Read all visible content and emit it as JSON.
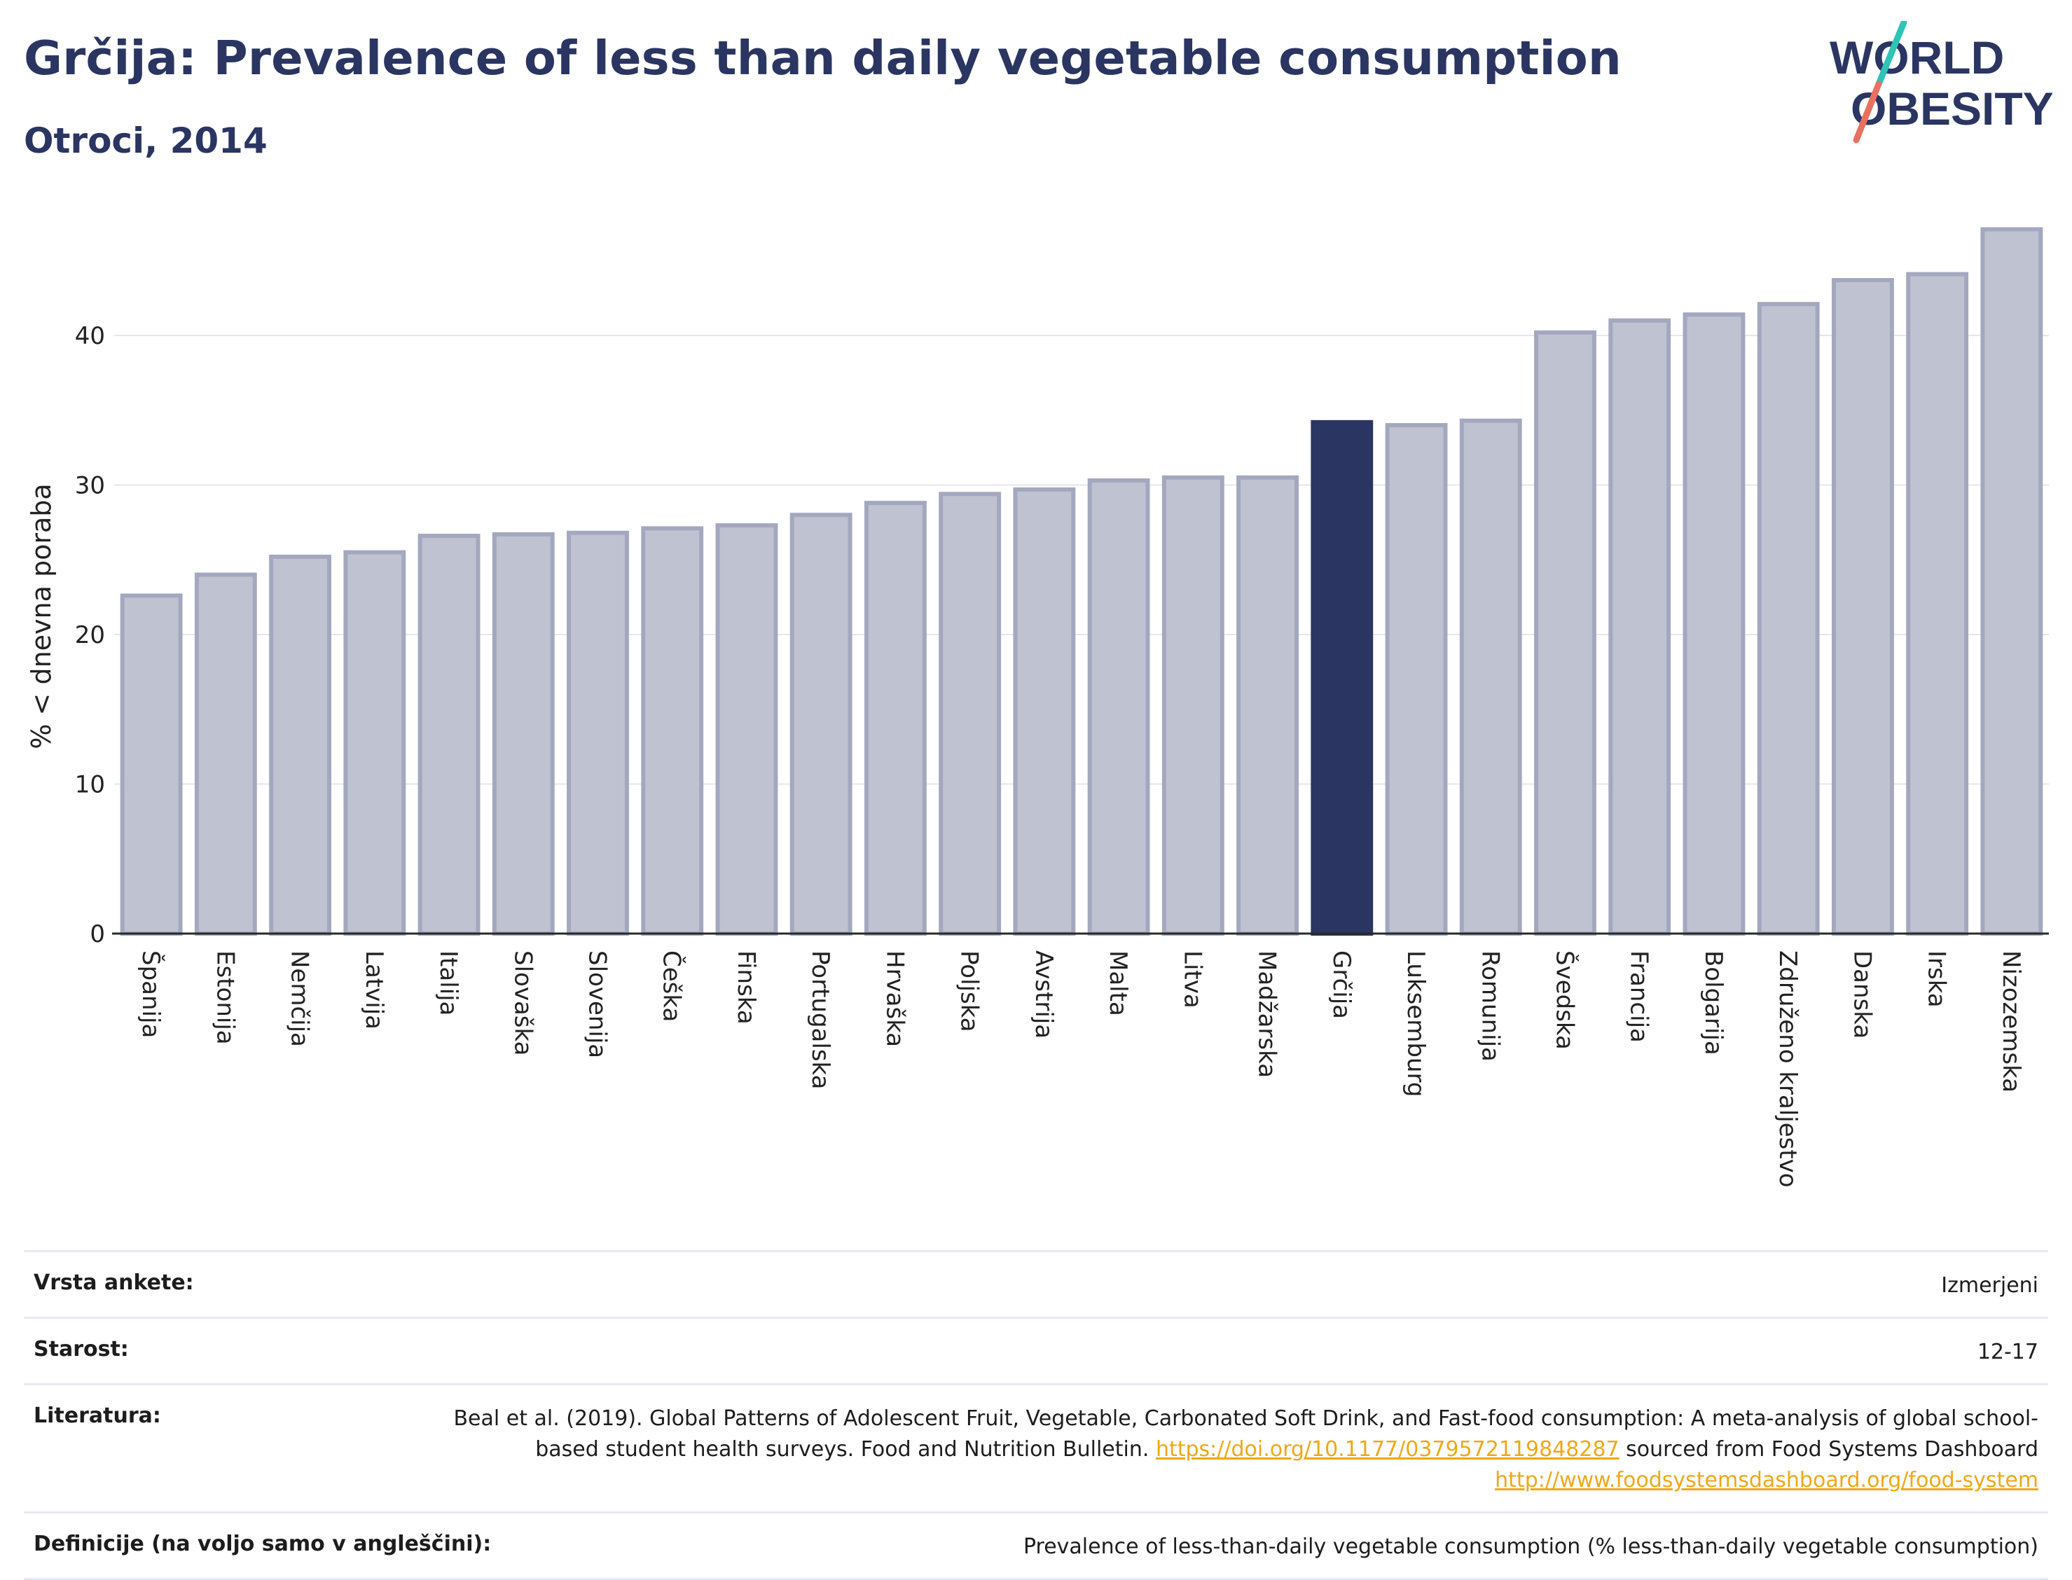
{
  "header": {
    "title": "Grčija: Prevalence of less than daily vegetable consumption",
    "subtitle": "Otroci, 2014"
  },
  "logo": {
    "line1": "WORLD",
    "line2": "OBESITY",
    "accent_colors": [
      "#2ec4b6",
      "#e8705f"
    ]
  },
  "chart_data": {
    "type": "bar",
    "ylabel": "% < dnevna poraba",
    "ylim": [
      0,
      48
    ],
    "yticks": [
      0,
      10,
      20,
      30,
      40
    ],
    "grid": true,
    "highlight": "Grčija",
    "colors": {
      "bar": "#bfc2d0",
      "bar_stroke": "#a3a8bf",
      "highlight": "#2a3561"
    },
    "categories": [
      "Španija",
      "Estonija",
      "Nemčija",
      "Latvija",
      "Italija",
      "Slovaška",
      "Slovenija",
      "Češka",
      "Finska",
      "Portugalska",
      "Hrvaška",
      "Poljska",
      "Avstrija",
      "Malta",
      "Litva",
      "Madžarska",
      "Grčija",
      "Luksemburg",
      "Romunija",
      "Švedska",
      "Francija",
      "Bolgarija",
      "Združeno kraljestvo",
      "Danska",
      "Irska",
      "Nizozemska"
    ],
    "values": [
      22.6,
      24.0,
      25.2,
      25.5,
      26.6,
      26.7,
      26.8,
      27.1,
      27.3,
      28.0,
      28.8,
      29.4,
      29.7,
      30.3,
      30.5,
      30.5,
      34.2,
      34.0,
      34.3,
      40.2,
      41.0,
      41.4,
      42.1,
      43.7,
      44.1,
      47.1
    ]
  },
  "meta": [
    {
      "label": "Vrsta ankete:",
      "value": "Izmerjeni"
    },
    {
      "label": "Starost:",
      "value": "12-17"
    },
    {
      "label": "Literatura:",
      "value_pre": "Beal et al. (2019). Global Patterns of Adolescent Fruit, Vegetable, Carbonated Soft Drink, and Fast-food consumption: A meta-analysis of global school-based student health surveys. Food and Nutrition Bulletin.",
      "link1": "https://doi.org/10.1177/0379572119848287",
      "value_mid": "sourced from Food Systems Dashboard",
      "link2": "http://www.foodsystemsdashboard.org/food-system"
    },
    {
      "label": "Definicije (na voljo samo v angleščini):",
      "value": "Prevalence of less-than-daily vegetable consumption (% less-than-daily vegetable consumption)"
    }
  ]
}
